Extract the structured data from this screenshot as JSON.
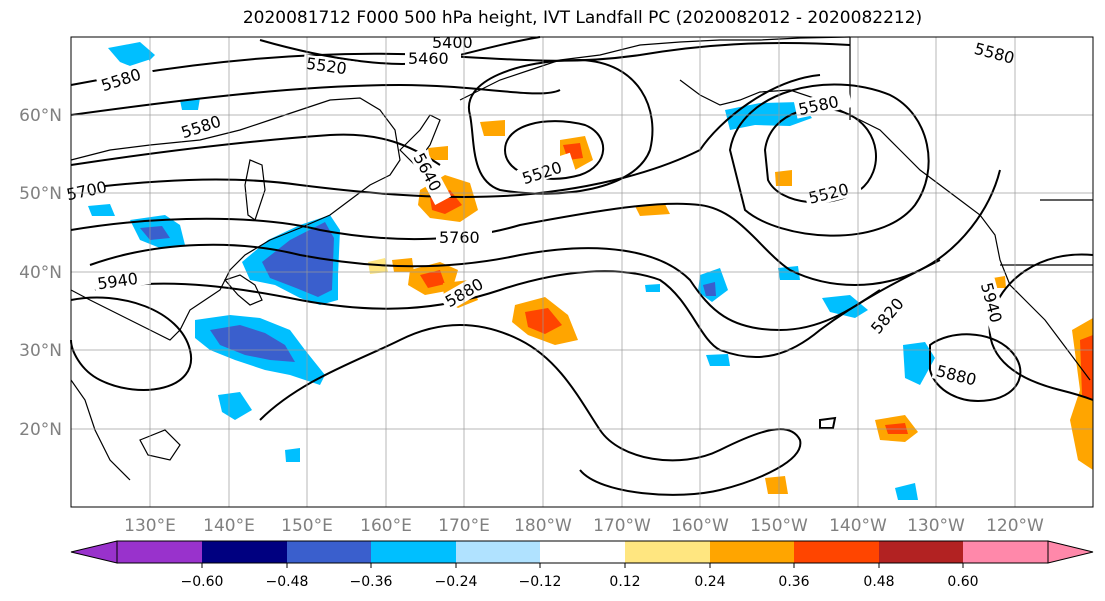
{
  "title": "2020081712 F000 500 hPa height, IVT Landfall PC (2020082012 - 2020082212)",
  "map": {
    "lon_labels": [
      "130°E",
      "140°E",
      "150°E",
      "160°E",
      "170°E",
      "180°W",
      "170°W",
      "160°W",
      "150°W",
      "140°W",
      "130°W",
      "120°W"
    ],
    "lat_labels": [
      "60°N",
      "50°N",
      "40°N",
      "30°N",
      "20°N"
    ],
    "contour_labels": [
      "5400",
      "5460",
      "5520",
      "5580",
      "5580",
      "5580",
      "5520",
      "5640",
      "5520",
      "5580",
      "5700",
      "5760",
      "5880",
      "5940",
      "5820",
      "5940",
      "5880"
    ]
  },
  "colorbar": {
    "ticks": [
      "−0.60",
      "−0.48",
      "−0.36",
      "−0.24",
      "−0.12",
      "0.12",
      "0.24",
      "0.36",
      "0.48",
      "0.60"
    ],
    "colors": [
      "#9932cc",
      "#000080",
      "#3a5fcd",
      "#00bfff",
      "#b0e2ff",
      "#ffffff",
      "#ffe680",
      "#ffa500",
      "#ff4500",
      "#b22222",
      "#ff88aa"
    ]
  }
}
